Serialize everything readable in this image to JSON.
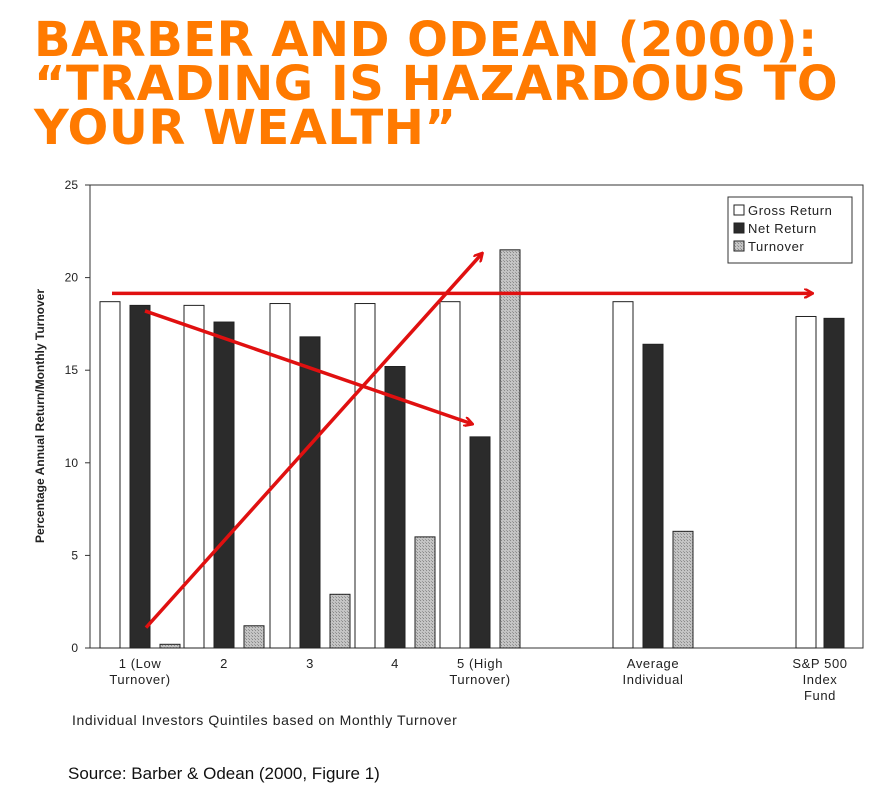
{
  "slide": {
    "title_lines": [
      "BARBER AND ODEAN (2000):",
      "“TRADING IS HAZARDOUS TO",
      "YOUR WEALTH”"
    ],
    "source": "Source: Barber & Odean (2000, Figure 1)",
    "title_color": "#ff7a00"
  },
  "chart_data": {
    "type": "bar",
    "ylabel": "Percentage Annual Return/Monthly Turnover",
    "xlabel": "Individual Investors Quintiles based on Monthly Turnover",
    "ylim": [
      0,
      25
    ],
    "yticks": [
      0,
      5,
      10,
      15,
      20,
      25
    ],
    "grid": false,
    "legend_position": "top-right",
    "categories": [
      [
        "1 (Low",
        "Turnover)"
      ],
      [
        "2"
      ],
      [
        "3"
      ],
      [
        "4"
      ],
      [
        "5 (High",
        "Turnover)"
      ],
      [
        "Average",
        "Individual"
      ],
      [
        "S&P 500",
        "Index",
        "Fund"
      ]
    ],
    "series": [
      {
        "name": "Gross Return",
        "color": "#ffffff",
        "values": [
          18.7,
          18.5,
          18.6,
          18.6,
          18.7,
          18.7,
          17.9
        ]
      },
      {
        "name": "Net Return",
        "color": "#2b2b2b",
        "values": [
          18.5,
          17.6,
          16.8,
          15.2,
          11.4,
          16.4,
          17.8
        ]
      },
      {
        "name": "Turnover",
        "color": "#b8b8b8",
        "values": [
          0.2,
          1.2,
          2.9,
          6.0,
          21.5,
          6.3,
          null
        ]
      }
    ],
    "annotations": {
      "arrow_color": "#e01010",
      "arrows": [
        {
          "from": "Gross Return at 1 (Low Turnover)",
          "to": "S&P 500 Index Fund"
        },
        {
          "from": "Net Return at 1 (Low Turnover)",
          "to": "Net Return at 5 (High Turnover)"
        },
        {
          "from": "Turnover at 1 (Low Turnover)",
          "to": "Turnover at 5 (High Turnover)"
        }
      ]
    }
  }
}
